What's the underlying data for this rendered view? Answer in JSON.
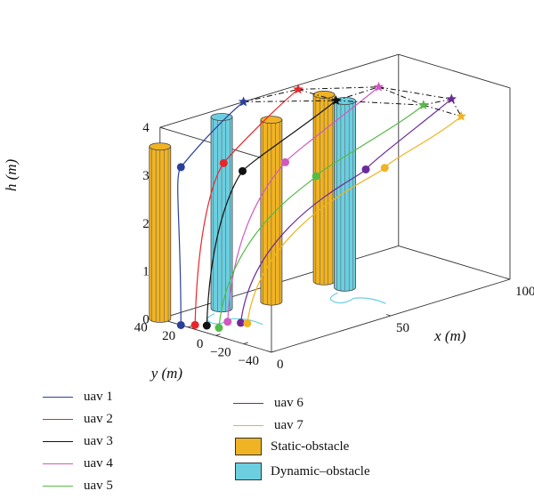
{
  "chart_data": {
    "type": "line",
    "projection": "3d",
    "xlabel": "x (m)",
    "ylabel": "y (m)",
    "zlabel": "h (m)",
    "xlim": [
      0,
      100
    ],
    "ylim": [
      -40,
      40
    ],
    "zlim": [
      0,
      4
    ],
    "x_ticks": [
      "0",
      "50",
      "100"
    ],
    "y_ticks": [
      "40",
      "20",
      "0",
      "−20",
      "−40"
    ],
    "z_ticks": [
      "0",
      "1",
      "2",
      "3",
      "4"
    ],
    "grid": false,
    "legend": "bottom-left",
    "series": [
      {
        "name": "uav 1",
        "color": "#2b3f9a",
        "start": {
          "x": 0,
          "y": 25,
          "h": 0
        },
        "waypoint": {
          "x": 0,
          "y": 25,
          "h": 3.3
        },
        "end": {
          "x": 35,
          "y": 40,
          "h": 4.0
        }
      },
      {
        "name": "uav 2",
        "color": "#e8262a",
        "start": {
          "x": 3,
          "y": 20,
          "h": 0
        },
        "waypoint": {
          "x": 15,
          "y": 20,
          "h": 3.2
        },
        "end": {
          "x": 55,
          "y": 35,
          "h": 4.0
        }
      },
      {
        "name": "uav 3",
        "color": "#111111",
        "start": {
          "x": 5,
          "y": 15,
          "h": 0
        },
        "waypoint": {
          "x": 20,
          "y": 15,
          "h": 3.0
        },
        "end": {
          "x": 65,
          "y": 25,
          "h": 3.7
        }
      },
      {
        "name": "uav 4",
        "color": "#d05ac0",
        "start": {
          "x": 12,
          "y": 12,
          "h": 0
        },
        "waypoint": {
          "x": 35,
          "y": 10,
          "h": 3.0
        },
        "end": {
          "x": 80,
          "y": 20,
          "h": 3.8
        }
      },
      {
        "name": "uav 5",
        "color": "#55bb44",
        "start": {
          "x": 6,
          "y": 8,
          "h": 0
        },
        "waypoint": {
          "x": 45,
          "y": 5,
          "h": 2.6
        },
        "end": {
          "x": 90,
          "y": 5,
          "h": 3.4
        }
      },
      {
        "name": "uav 6",
        "color": "#6b2a9a",
        "start": {
          "x": 14,
          "y": 6,
          "h": 0
        },
        "waypoint": {
          "x": 60,
          "y": -5,
          "h": 2.6
        },
        "end": {
          "x": 100,
          "y": 2,
          "h": 3.4
        }
      },
      {
        "name": "uav 7",
        "color": "#f0b323",
        "start": {
          "x": 15,
          "y": 3,
          "h": 0
        },
        "waypoint": {
          "x": 65,
          "y": -10,
          "h": 2.6
        },
        "end": {
          "x": 100,
          "y": -5,
          "h": 3.1
        }
      }
    ],
    "obstacles": [
      {
        "name": "Static-obstacle",
        "color": "#f0b323",
        "x": 0,
        "y": 40,
        "height": 3.6,
        "radius": 4
      },
      {
        "name": "Dynamic–obstacle",
        "color": "#6ccfe0",
        "x": 20,
        "y": 30,
        "height": 4.0,
        "radius": 4
      },
      {
        "name": "Static-obstacle",
        "color": "#f0b323",
        "x": 35,
        "y": 20,
        "height": 3.8,
        "radius": 4
      },
      {
        "name": "Static-obstacle",
        "color": "#f0b323",
        "x": 60,
        "y": 25,
        "height": 3.9,
        "radius": 4
      },
      {
        "name": "Dynamic–obstacle",
        "color": "#6ccfe0",
        "x": 60,
        "y": 10,
        "height": 3.9,
        "radius": 4
      }
    ],
    "formation_links": [
      [
        0,
        1
      ],
      [
        1,
        2
      ],
      [
        0,
        2
      ],
      [
        2,
        3
      ],
      [
        1,
        3
      ],
      [
        3,
        4
      ],
      [
        3,
        5
      ],
      [
        4,
        5
      ],
      [
        4,
        6
      ],
      [
        5,
        6
      ],
      [
        2,
        4
      ]
    ],
    "legend_entries": [
      {
        "label": "uav 1",
        "kind": "line",
        "color": "#2b3f9a"
      },
      {
        "label": "uav 2",
        "kind": "line",
        "color": "#e8262a"
      },
      {
        "label": "uav 3",
        "kind": "line",
        "color": "#111111"
      },
      {
        "label": "uav 4",
        "kind": "line",
        "color": "#d05ac0"
      },
      {
        "label": "uav 5",
        "kind": "line",
        "color": "#55bb44"
      },
      {
        "label": "uav 6",
        "kind": "line",
        "color": "#6b2a9a"
      },
      {
        "label": "uav 7",
        "kind": "line",
        "color": "#f0b323"
      },
      {
        "label": "Static-obstacle",
        "kind": "box",
        "color": "#f0b323"
      },
      {
        "label": "Dynamic–obstacle",
        "kind": "box",
        "color": "#6ccfe0"
      }
    ]
  }
}
